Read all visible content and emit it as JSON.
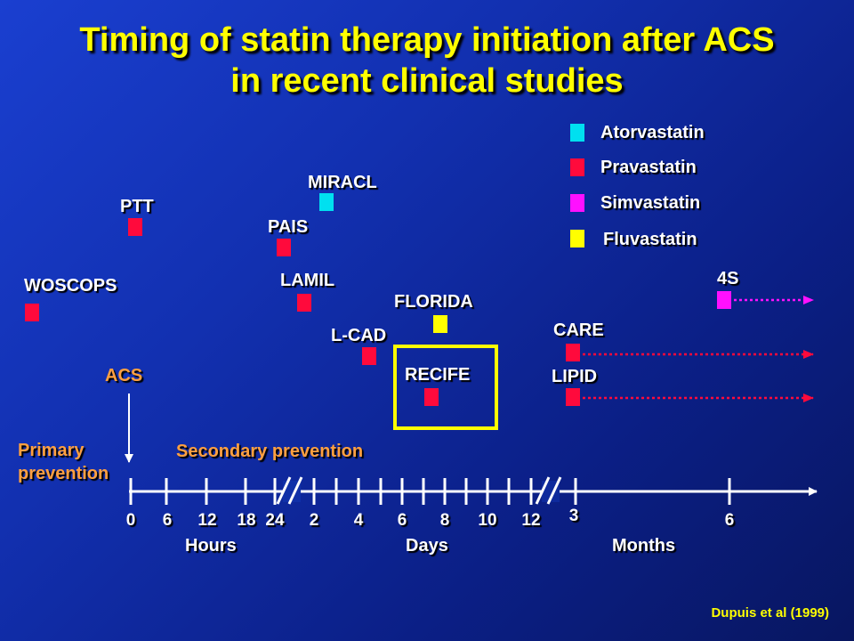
{
  "title_line1": "Timing of statin therapy initiation after ACS",
  "title_line2": "in recent clinical studies",
  "legend": [
    {
      "label": "Atorvastatin",
      "color": "#00e0f0"
    },
    {
      "label": "Pravastatin",
      "color": "#ff0a3c"
    },
    {
      "label": "Simvastatin",
      "color": "#ff10ff"
    },
    {
      "label": "Fluvastatin",
      "color": "#ffff00"
    }
  ],
  "studies": [
    {
      "name": "WOSCOPS",
      "drug": "Pravastatin"
    },
    {
      "name": "PTT",
      "drug": "Pravastatin"
    },
    {
      "name": "MIRACL",
      "drug": "Atorvastatin"
    },
    {
      "name": "PAIS",
      "drug": "Pravastatin"
    },
    {
      "name": "LAMIL",
      "drug": "Pravastatin"
    },
    {
      "name": "L-CAD",
      "drug": "Pravastatin"
    },
    {
      "name": "FLORIDA",
      "drug": "Fluvastatin"
    },
    {
      "name": "RECIFE",
      "drug": "Pravastatin"
    },
    {
      "name": "CARE",
      "drug": "Pravastatin"
    },
    {
      "name": "LIPID",
      "drug": "Pravastatin"
    },
    {
      "name": "4S",
      "drug": "Simvastatin"
    }
  ],
  "acs_label": "ACS",
  "primary_prevention": [
    "Primary",
    "prevention"
  ],
  "secondary_prevention": "Secondary prevention",
  "ticks": {
    "hours": [
      "0",
      "6",
      "12",
      "18",
      "24"
    ],
    "days": [
      "2",
      "4",
      "6",
      "8",
      "10",
      "12"
    ],
    "months": [
      "3",
      "6"
    ]
  },
  "units": {
    "hours": "Hours",
    "days": "Days",
    "months": "Months"
  },
  "citation": "Dupuis et al (1999)"
}
